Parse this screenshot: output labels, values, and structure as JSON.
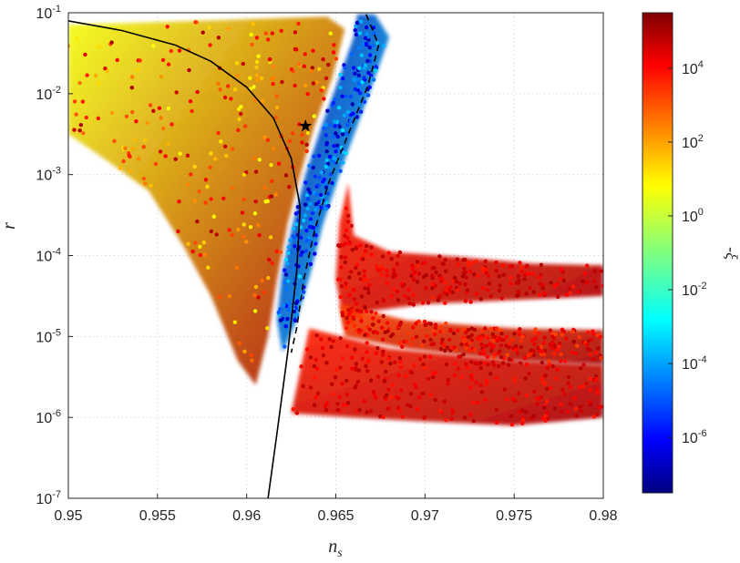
{
  "chart_data": {
    "type": "scatter",
    "xlabel": {
      "base": "n",
      "sub": "s"
    },
    "ylabel": "r",
    "xlim": [
      0.95,
      0.98
    ],
    "ylim_log10": [
      -7,
      -1
    ],
    "yscale": "log",
    "grid": true,
    "x_ticks": [
      "0.95",
      "0.955",
      "0.96",
      "0.965",
      "0.97",
      "0.975",
      "0.98"
    ],
    "x_tick_values": [
      0.95,
      0.955,
      0.96,
      0.965,
      0.97,
      0.975,
      0.98
    ],
    "y_ticks": [
      {
        "base": "10",
        "exp": "-7",
        "value": -7
      },
      {
        "base": "10",
        "exp": "-6",
        "value": -6
      },
      {
        "base": "10",
        "exp": "-5",
        "value": -5
      },
      {
        "base": "10",
        "exp": "-4",
        "value": -4
      },
      {
        "base": "10",
        "exp": "-3",
        "value": -3
      },
      {
        "base": "10",
        "exp": "-2",
        "value": -2
      },
      {
        "base": "10",
        "exp": "-1",
        "value": -1
      }
    ],
    "colorbar": {
      "label": "-ξ",
      "scale": "log",
      "range_log10": [
        -7.5,
        5.5
      ],
      "colormap": "jet",
      "ticks": [
        {
          "base": "10",
          "exp": "-6",
          "value": -6
        },
        {
          "base": "10",
          "exp": "-4",
          "value": -4
        },
        {
          "base": "10",
          "exp": "-2",
          "value": -2
        },
        {
          "base": "10",
          "exp": "0",
          "value": 0
        },
        {
          "base": "10",
          "exp": "2",
          "value": 2
        },
        {
          "base": "10",
          "exp": "4",
          "value": 4
        }
      ]
    },
    "regions": [
      {
        "name": "upper-left fan",
        "color_log10": [
          0.5,
          5
        ],
        "polygon": [
          [
            0.95,
            -1.15
          ],
          [
            0.9645,
            -1.05
          ],
          [
            0.9655,
            -1.2
          ],
          [
            0.9648,
            -1.8
          ],
          [
            0.9638,
            -2.4
          ],
          [
            0.963,
            -3.0
          ],
          [
            0.9623,
            -3.6
          ],
          [
            0.9617,
            -4.3
          ],
          [
            0.9612,
            -5.0
          ],
          [
            0.9605,
            -5.6
          ],
          [
            0.9595,
            -5.3
          ],
          [
            0.958,
            -4.5
          ],
          [
            0.9565,
            -3.9
          ],
          [
            0.9545,
            -3.2
          ],
          [
            0.952,
            -2.8
          ],
          [
            0.95,
            -2.5
          ]
        ]
      },
      {
        "name": "lower-right low-r band",
        "color_log10": [
          3.5,
          5
        ],
        "polygon": [
          [
            0.9635,
            -4.9
          ],
          [
            0.968,
            -5.15
          ],
          [
            0.975,
            -5.3
          ],
          [
            0.98,
            -5.35
          ],
          [
            0.98,
            -6.0
          ],
          [
            0.975,
            -6.1
          ],
          [
            0.97,
            -6.05
          ],
          [
            0.966,
            -6.0
          ],
          [
            0.9625,
            -5.95
          ]
        ]
      },
      {
        "name": "right plateau band",
        "color_log10": [
          3.5,
          5
        ],
        "polygon": [
          [
            0.9657,
            -3.1
          ],
          [
            0.966,
            -3.75
          ],
          [
            0.968,
            -3.95
          ],
          [
            0.972,
            -4.02
          ],
          [
            0.976,
            -4.1
          ],
          [
            0.98,
            -4.12
          ],
          [
            0.98,
            -4.5
          ],
          [
            0.975,
            -4.55
          ],
          [
            0.97,
            -4.6
          ],
          [
            0.9665,
            -4.7
          ],
          [
            0.9655,
            -4.9
          ],
          [
            0.965,
            -4.3
          ],
          [
            0.9652,
            -3.6
          ]
        ]
      },
      {
        "name": "mid right plateau",
        "color_log10": [
          3,
          5
        ],
        "polygon": [
          [
            0.9652,
            -4.6
          ],
          [
            0.969,
            -4.8
          ],
          [
            0.975,
            -4.9
          ],
          [
            0.98,
            -4.92
          ],
          [
            0.98,
            -5.35
          ],
          [
            0.975,
            -5.3
          ],
          [
            0.969,
            -5.15
          ],
          [
            0.9655,
            -5.0
          ]
        ]
      },
      {
        "name": "blue valley",
        "color_log10": [
          -7,
          -3
        ],
        "polygon": [
          [
            0.9672,
            -1.02
          ],
          [
            0.968,
            -1.3
          ],
          [
            0.9672,
            -1.8
          ],
          [
            0.9662,
            -2.4
          ],
          [
            0.9652,
            -3.0
          ],
          [
            0.9643,
            -3.6
          ],
          [
            0.9636,
            -4.2
          ],
          [
            0.9628,
            -4.8
          ],
          [
            0.962,
            -5.2
          ],
          [
            0.9617,
            -4.8
          ],
          [
            0.962,
            -4.2
          ],
          [
            0.9626,
            -3.6
          ],
          [
            0.9633,
            -3.0
          ],
          [
            0.9642,
            -2.4
          ],
          [
            0.9652,
            -1.8
          ],
          [
            0.966,
            -1.3
          ],
          [
            0.9662,
            -1.02
          ]
        ]
      }
    ],
    "lines": [
      {
        "name": "solid curve",
        "style": "solid",
        "points": [
          [
            0.95,
            -1.1
          ],
          [
            0.953,
            -1.22
          ],
          [
            0.956,
            -1.4
          ],
          [
            0.958,
            -1.6
          ],
          [
            0.96,
            -1.92
          ],
          [
            0.9615,
            -2.3
          ],
          [
            0.9625,
            -2.8
          ],
          [
            0.963,
            -3.4
          ],
          [
            0.9628,
            -4.2
          ],
          [
            0.9623,
            -5.2
          ],
          [
            0.9617,
            -6.2
          ],
          [
            0.9612,
            -7.0
          ]
        ]
      },
      {
        "name": "dashed curve",
        "style": "dashed",
        "points": [
          [
            0.9667,
            -1.02
          ],
          [
            0.9674,
            -1.4
          ],
          [
            0.9668,
            -1.9
          ],
          [
            0.9657,
            -2.5
          ],
          [
            0.9646,
            -3.1
          ],
          [
            0.9638,
            -3.7
          ],
          [
            0.9632,
            -4.3
          ],
          [
            0.9628,
            -4.9
          ],
          [
            0.9625,
            -5.2
          ]
        ]
      }
    ],
    "star_marker": {
      "x": 0.9633,
      "y_log10": -2.4
    }
  }
}
